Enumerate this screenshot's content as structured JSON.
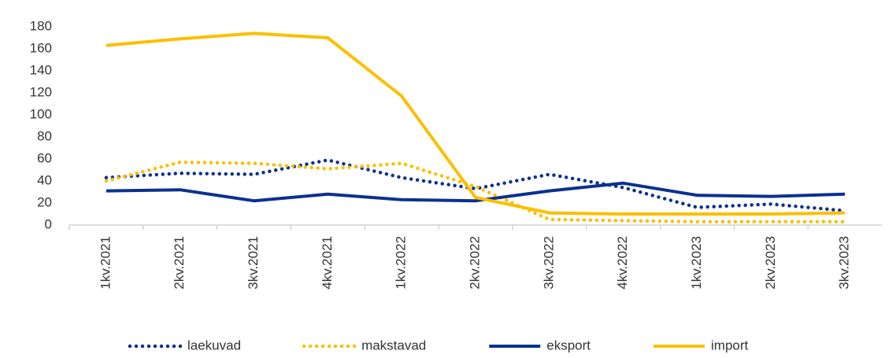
{
  "chart_data": {
    "type": "line",
    "categories": [
      "1kv.2021",
      "2kv.2021",
      "3kv.2021",
      "4kv.2021",
      "1kv.2022",
      "2kv.2022",
      "3kv.2022",
      "4kv.2022",
      "1kv.2023",
      "2kv.2023",
      "3kv.2023"
    ],
    "series": [
      {
        "name": "laekuvad",
        "color": "#0b318f",
        "style": "dotted",
        "values": [
          43,
          47,
          46,
          59,
          43,
          33,
          46,
          34,
          16,
          19,
          13
        ]
      },
      {
        "name": "makstavad",
        "color": "#fbbf00",
        "style": "dotted",
        "values": [
          40,
          57,
          56,
          51,
          56,
          35,
          5,
          4,
          3,
          3,
          3
        ]
      },
      {
        "name": "eksport",
        "color": "#0b318f",
        "style": "solid",
        "values": [
          31,
          32,
          22,
          28,
          23,
          22,
          31,
          38,
          27,
          26,
          28
        ]
      },
      {
        "name": "import",
        "color": "#fbbf00",
        "style": "solid",
        "values": [
          163,
          169,
          174,
          170,
          117,
          25,
          11,
          10,
          10,
          10,
          11
        ]
      }
    ],
    "ylim": [
      0,
      180
    ],
    "yticks": [
      0,
      20,
      40,
      60,
      80,
      100,
      120,
      140,
      160,
      180
    ],
    "grid": false,
    "legend": "bottom"
  }
}
